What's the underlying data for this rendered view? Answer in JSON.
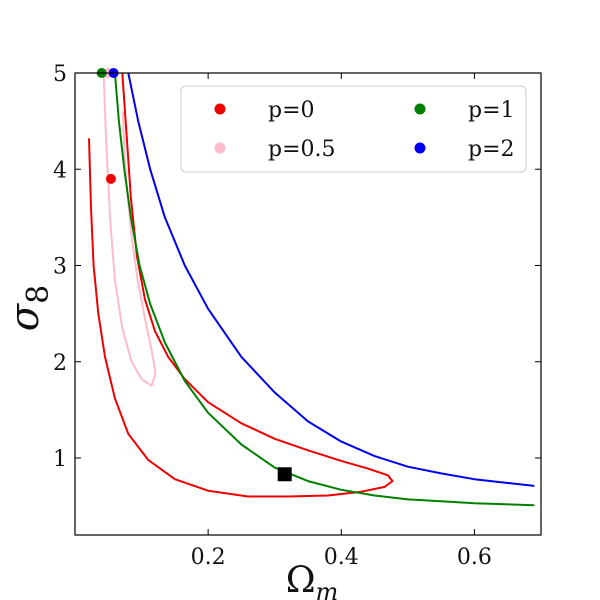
{
  "chart_data": {
    "type": "line",
    "xlabel": "Ω",
    "xlabel_sub": "m",
    "ylabel": "σ",
    "ylabel_sub": "8",
    "xlim": [
      0.0,
      0.7
    ],
    "ylim": [
      0.2,
      5.0
    ],
    "xticks": [
      {
        "value": 0.2,
        "label": "0.2"
      },
      {
        "value": 0.4,
        "label": "0.4"
      },
      {
        "value": 0.6,
        "label": "0.6"
      }
    ],
    "yticks": [
      {
        "value": 1,
        "label": "1"
      },
      {
        "value": 2,
        "label": "2"
      },
      {
        "value": 3,
        "label": "3"
      },
      {
        "value": 4,
        "label": "4"
      },
      {
        "value": 5,
        "label": "5"
      }
    ],
    "series": [
      {
        "name": "p=0",
        "color": "#ee0000",
        "points": [
          [
            0.021,
            4.32
          ],
          [
            0.024,
            3.6
          ],
          [
            0.028,
            3.0
          ],
          [
            0.035,
            2.5
          ],
          [
            0.045,
            2.05
          ],
          [
            0.06,
            1.62
          ],
          [
            0.08,
            1.25
          ],
          [
            0.11,
            0.98
          ],
          [
            0.15,
            0.78
          ],
          [
            0.2,
            0.66
          ],
          [
            0.26,
            0.6
          ],
          [
            0.32,
            0.6
          ],
          [
            0.38,
            0.61
          ],
          [
            0.43,
            0.65
          ],
          [
            0.465,
            0.7
          ],
          [
            0.477,
            0.76
          ],
          [
            0.47,
            0.82
          ],
          [
            0.44,
            0.89
          ],
          [
            0.4,
            0.97
          ],
          [
            0.35,
            1.08
          ],
          [
            0.3,
            1.2
          ],
          [
            0.25,
            1.36
          ],
          [
            0.2,
            1.58
          ],
          [
            0.165,
            1.82
          ],
          [
            0.14,
            2.05
          ],
          [
            0.12,
            2.32
          ],
          [
            0.105,
            2.65
          ],
          [
            0.093,
            3.1
          ],
          [
            0.084,
            3.7
          ],
          [
            0.077,
            4.4
          ],
          [
            0.071,
            5.0
          ]
        ],
        "marker": {
          "x": 0.054,
          "y": 3.9
        }
      },
      {
        "name": "p=0.5",
        "color": "#ffbbcc",
        "points": [
          [
            0.072,
            4.6
          ],
          [
            0.074,
            4.2
          ],
          [
            0.078,
            3.8
          ],
          [
            0.085,
            3.3
          ],
          [
            0.094,
            2.85
          ],
          [
            0.105,
            2.45
          ],
          [
            0.115,
            2.12
          ],
          [
            0.121,
            1.88
          ],
          [
            0.115,
            1.75
          ],
          [
            0.1,
            1.82
          ],
          [
            0.085,
            2.0
          ],
          [
            0.071,
            2.35
          ],
          [
            0.06,
            2.85
          ],
          [
            0.053,
            3.45
          ],
          [
            0.048,
            4.1
          ],
          [
            0.045,
            4.6
          ],
          [
            0.043,
            5.0
          ]
        ],
        "marker": {
          "x": 0.05,
          "y": 5.0
        }
      },
      {
        "name": "p=1",
        "color": "#008000",
        "points": [
          [
            0.06,
            5.0
          ],
          [
            0.066,
            4.5
          ],
          [
            0.074,
            4.0
          ],
          [
            0.084,
            3.5
          ],
          [
            0.097,
            3.0
          ],
          [
            0.113,
            2.6
          ],
          [
            0.135,
            2.2
          ],
          [
            0.165,
            1.8
          ],
          [
            0.2,
            1.47
          ],
          [
            0.25,
            1.14
          ],
          [
            0.3,
            0.9
          ],
          [
            0.35,
            0.76
          ],
          [
            0.4,
            0.67
          ],
          [
            0.45,
            0.61
          ],
          [
            0.5,
            0.57
          ],
          [
            0.55,
            0.55
          ],
          [
            0.6,
            0.53
          ],
          [
            0.69,
            0.51
          ]
        ],
        "marker": {
          "x": 0.04,
          "y": 5.0
        }
      },
      {
        "name": "p=2",
        "color": "#0000ee",
        "points": [
          [
            0.08,
            5.0
          ],
          [
            0.095,
            4.5
          ],
          [
            0.113,
            4.0
          ],
          [
            0.135,
            3.5
          ],
          [
            0.165,
            3.0
          ],
          [
            0.2,
            2.55
          ],
          [
            0.25,
            2.05
          ],
          [
            0.3,
            1.68
          ],
          [
            0.35,
            1.38
          ],
          [
            0.4,
            1.17
          ],
          [
            0.45,
            1.02
          ],
          [
            0.5,
            0.91
          ],
          [
            0.55,
            0.84
          ],
          [
            0.6,
            0.78
          ],
          [
            0.65,
            0.74
          ],
          [
            0.69,
            0.71
          ]
        ],
        "marker": {
          "x": 0.058,
          "y": 5.0
        }
      }
    ],
    "fiducial": {
      "x": 0.315,
      "y": 0.831,
      "color": "#000000"
    },
    "legend": {
      "position": "top-right",
      "columns": 2,
      "entries": [
        {
          "label": "p=0",
          "color": "#ee0000"
        },
        {
          "label": "p=1",
          "color": "#008000"
        },
        {
          "label": "p=0.5",
          "color": "#ffbbcc"
        },
        {
          "label": "p=2",
          "color": "#0000ee"
        }
      ]
    }
  }
}
